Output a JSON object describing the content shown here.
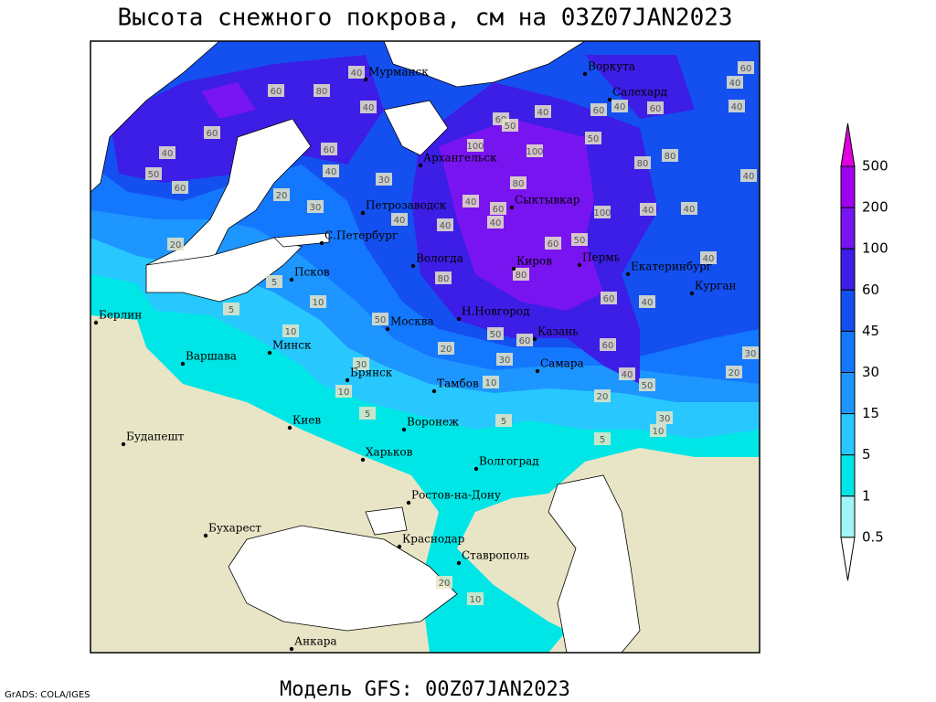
{
  "title": "Высота снежного покрова, см на 03Z07JAN2023",
  "footer": "Модель GFS: 00Z07JAN2023",
  "credit": "GrADS: COLA/IGES",
  "legend": {
    "levels": [
      500,
      200,
      100,
      60,
      45,
      30,
      15,
      5,
      1,
      0.5
    ],
    "colors": [
      "#e000e0",
      "#a000f0",
      "#7814f0",
      "#3c1ee6",
      "#1450f0",
      "#1478ff",
      "#1e96ff",
      "#28c8ff",
      "#00e6e6",
      "#a0f5f5",
      "#ffffff"
    ]
  },
  "cities": [
    "Мурманск",
    "Воркута",
    "Салехард",
    "Архангельск",
    "Петрозаводск",
    "Сыктывкар",
    "С.Петербург",
    "Вологда",
    "Киров",
    "Пермь",
    "Екатеринбург",
    "Курган",
    "Псков",
    "Москва",
    "Н.Новгород",
    "Казань",
    "Берлин",
    "Минск",
    "Варшава",
    "Брянск",
    "Тамбов",
    "Самара",
    "Киев",
    "Воронеж",
    "Будапешт",
    "Харьков",
    "Волгоград",
    "Ростов-на-Дону",
    "Бухарест",
    "Краснодар",
    "Ставрополь",
    "Анкара"
  ],
  "contour_labels": [
    60,
    80,
    40,
    40,
    60,
    40,
    60,
    40,
    50,
    60,
    20,
    30,
    20,
    5,
    10,
    5,
    10,
    50,
    100,
    100,
    60,
    50,
    40,
    80,
    60,
    40,
    40,
    40,
    30,
    100,
    80,
    80,
    40,
    40,
    40,
    60,
    60,
    50,
    60,
    40,
    40,
    40,
    60,
    50,
    80,
    80,
    60,
    40,
    40,
    30,
    20,
    60,
    40,
    50,
    20,
    30,
    10,
    5,
    20,
    30,
    30,
    10,
    10,
    5,
    5,
    10,
    20,
    40,
    60,
    50
  ]
}
